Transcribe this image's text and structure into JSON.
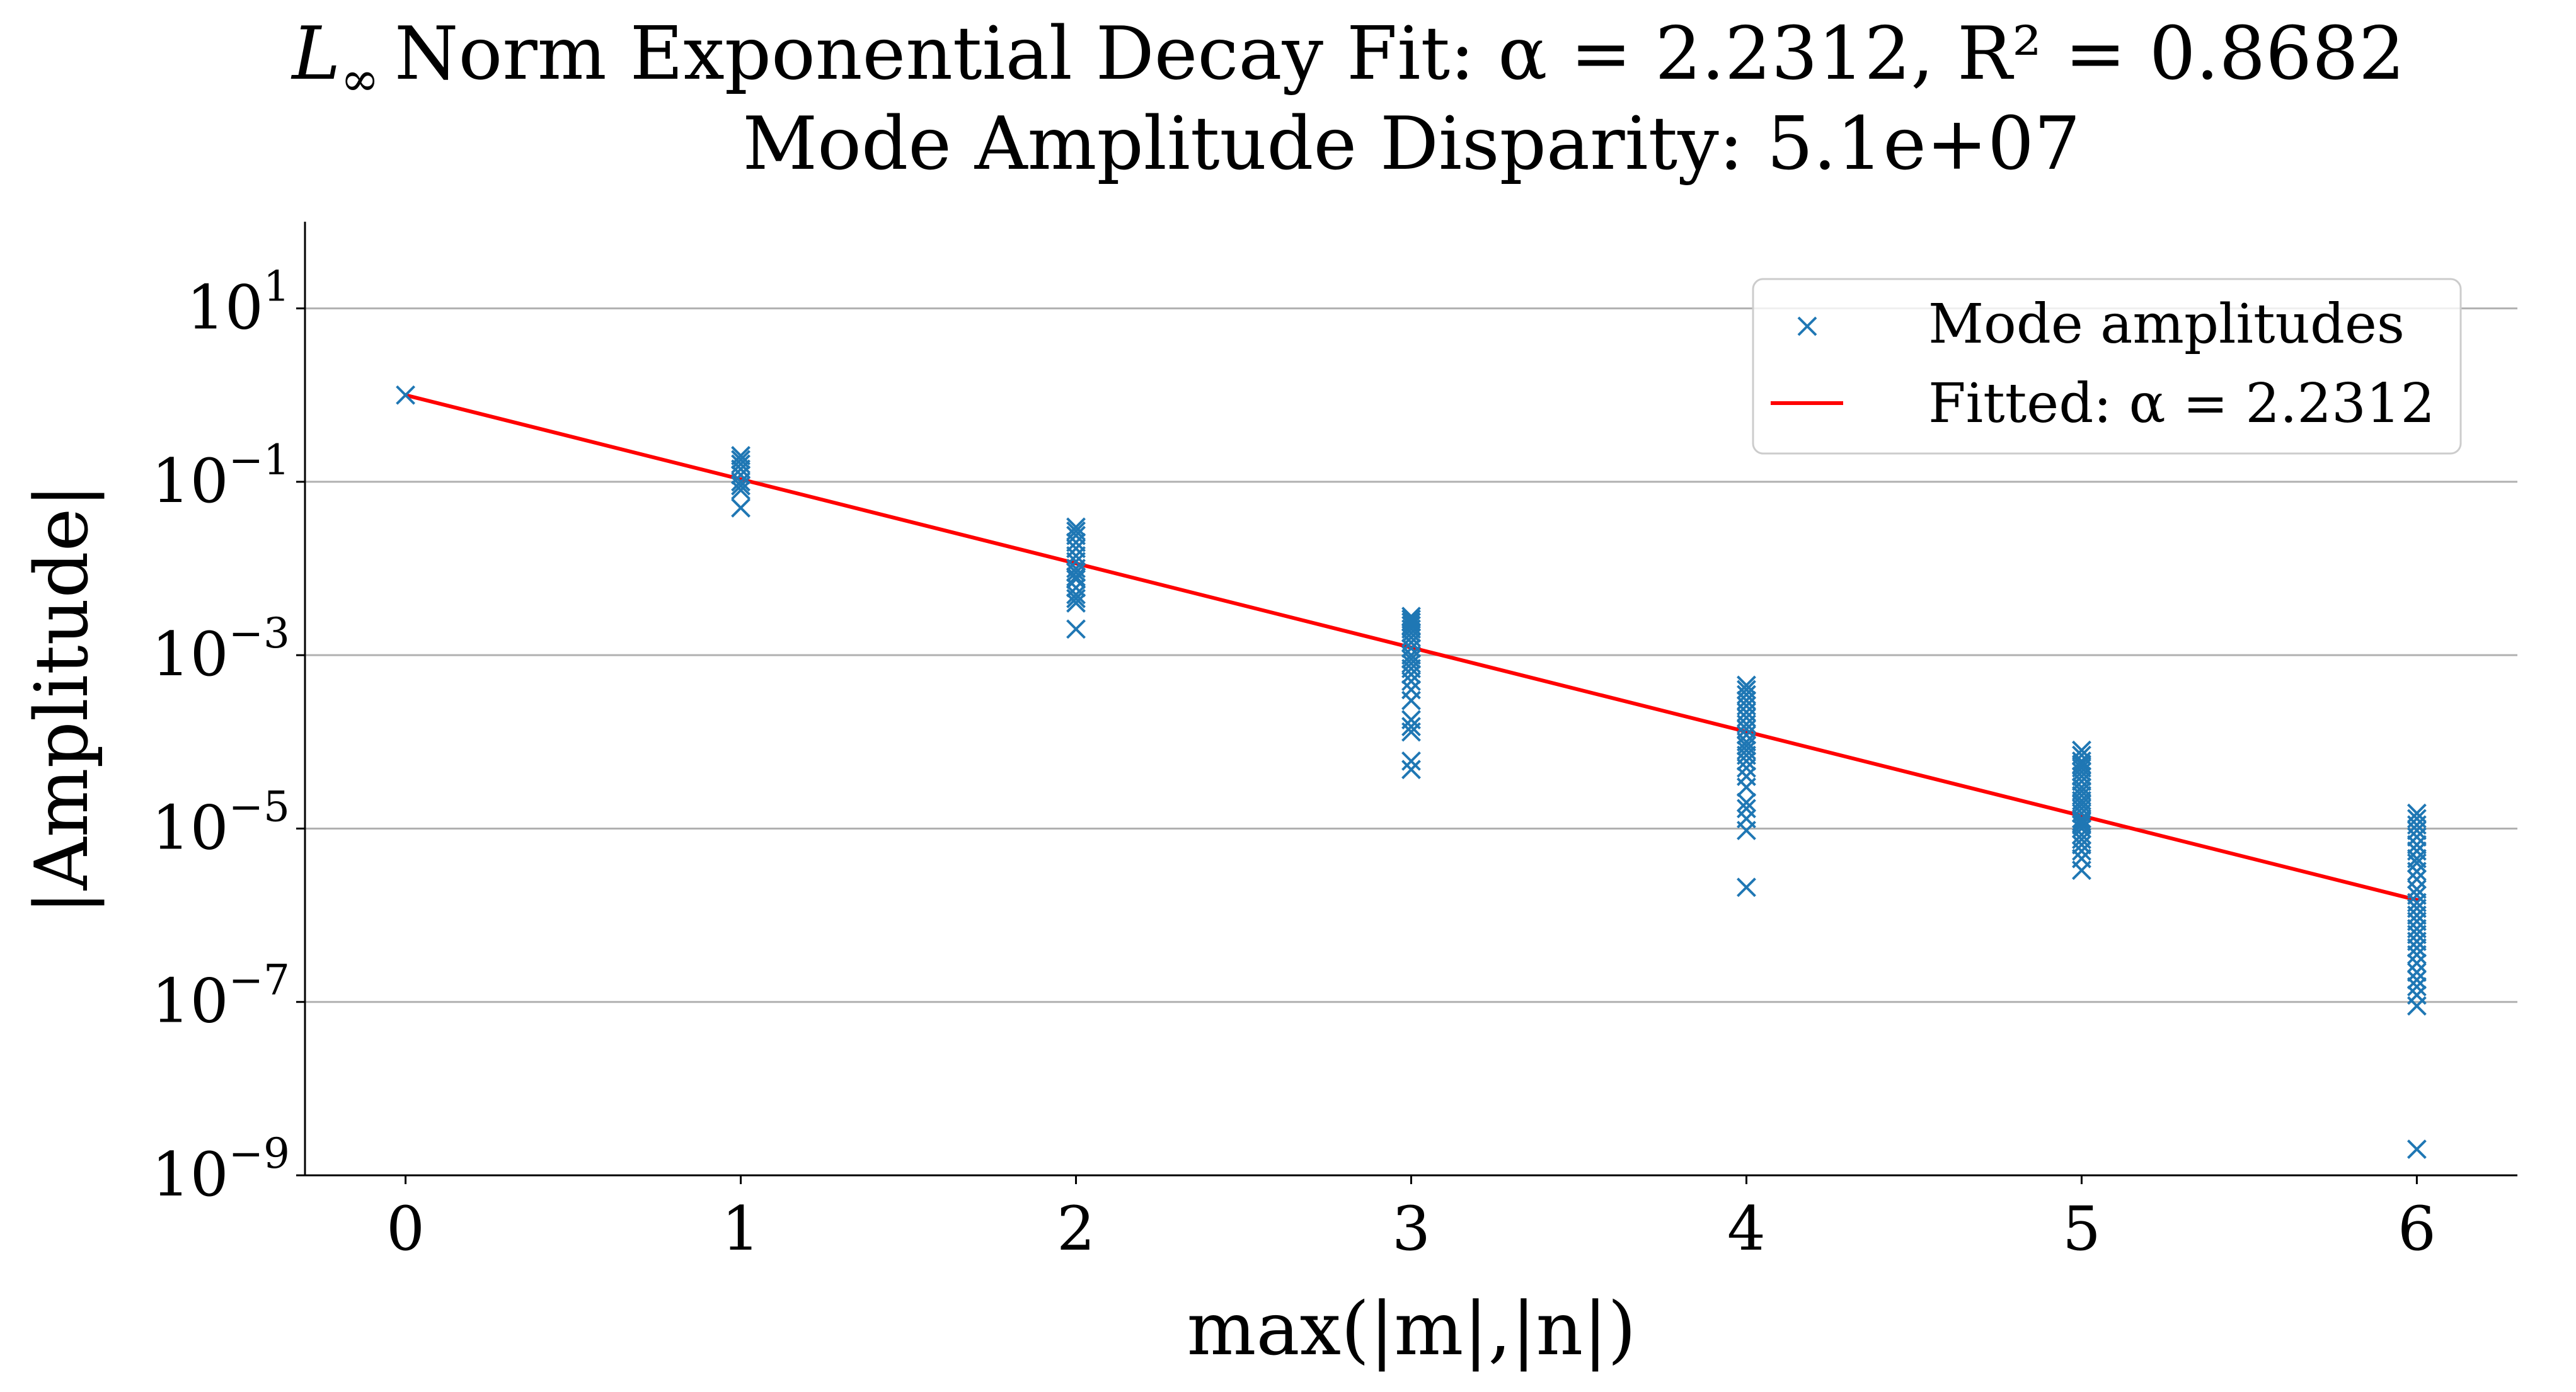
{
  "chart_data": {
    "type": "scatter",
    "title": {
      "norm_symbol": "L",
      "norm_subscript": "∞",
      "line1": "Norm Exponential Decay Fit: α = 2.2312, R² = 0.8682",
      "line2": "Mode Amplitude Disparity: 5.1e+07"
    },
    "xlabel": "max(|m|,|n|)",
    "ylabel": "|Amplitude|",
    "yscale": "log",
    "xlim": [
      -0.3,
      6.3
    ],
    "ylim": [
      1e-09,
      100
    ],
    "grid": "y-major",
    "xticks": [
      0,
      1,
      2,
      3,
      4,
      5,
      6
    ],
    "xtick_labels": [
      "0",
      "1",
      "2",
      "3",
      "4",
      "5",
      "6"
    ],
    "yticks": [
      {
        "value": 10,
        "base": "10",
        "exp": "1"
      },
      {
        "value": 0.1,
        "base": "10",
        "exp": "−1"
      },
      {
        "value": 0.001,
        "base": "10",
        "exp": "−3"
      },
      {
        "value": 1e-05,
        "base": "10",
        "exp": "−5"
      },
      {
        "value": 1e-07,
        "base": "10",
        "exp": "−7"
      },
      {
        "value": 1e-09,
        "base": "10",
        "exp": "−9"
      }
    ],
    "series": [
      {
        "name": "Mode amplitudes",
        "kind": "scatter",
        "marker": "x",
        "color": "#1f77b4",
        "points": [
          {
            "x": 0,
            "values": [
              1.0
            ]
          },
          {
            "x": 1,
            "values": [
              0.2,
              0.18,
              0.16,
              0.14,
              0.12,
              0.1,
              0.09,
              0.08,
              0.05
            ]
          },
          {
            "x": 2,
            "values": [
              0.03,
              0.027,
              0.024,
              0.02,
              0.017,
              0.014,
              0.012,
              0.01,
              0.009,
              0.008,
              0.0075,
              0.006,
              0.005,
              0.0045,
              0.004,
              0.002
            ]
          },
          {
            "x": 3,
            "values": [
              0.0028,
              0.0026,
              0.0024,
              0.0022,
              0.002,
              0.0018,
              0.0016,
              0.0014,
              0.0012,
              0.001,
              0.0009,
              0.0008,
              0.0007,
              0.0006,
              0.0005,
              0.0004,
              0.0003,
              0.00018,
              0.00015,
              0.00013,
              6e-05,
              4.8e-05
            ]
          },
          {
            "x": 4,
            "values": [
              0.00045,
              0.0004,
              0.00035,
              0.0003,
              0.00026,
              0.00022,
              0.00019,
              0.00016,
              0.00014,
              0.00012,
              0.0001,
              9e-05,
              8e-05,
              7e-05,
              6e-05,
              5e-05,
              4e-05,
              3e-05,
              2e-05,
              1.7e-05,
              1.3e-05,
              9.5e-06,
              2.1e-06
            ]
          },
          {
            "x": 5,
            "values": [
              8e-05,
              7e-05,
              6e-05,
              5.5e-05,
              5e-05,
              4.5e-05,
              4e-05,
              3.5e-05,
              3e-05,
              2.7e-05,
              2.4e-05,
              2.1e-05,
              1.9e-05,
              1.7e-05,
              1.5e-05,
              1.3e-05,
              1.2e-05,
              1.1e-05,
              1e-05,
              8.5e-06,
              7.5e-06,
              6.5e-06,
              5.5e-06,
              4.5e-06,
              3.3e-06
            ]
          },
          {
            "x": 6,
            "values": [
              1.5e-05,
              1.3e-05,
              1.1e-05,
              9.5e-06,
              8e-06,
              6.5e-06,
              5.5e-06,
              4.5e-06,
              4e-06,
              3.2e-06,
              2.6e-06,
              2e-06,
              1.7e-06,
              1.4e-06,
              1.2e-06,
              1e-06,
              8.5e-07,
              7e-07,
              6e-07,
              5e-07,
              4.2e-07,
              3.5e-07,
              2.8e-07,
              2.2e-07,
              1.8e-07,
              1.5e-07,
              1.2e-07,
              9e-08,
              2e-09
            ]
          }
        ]
      },
      {
        "name": "Fitted: α = 2.2312",
        "kind": "line",
        "color": "#ff0000",
        "x": [
          0,
          6
        ],
        "values": [
          1.0,
          1.5e-06
        ]
      }
    ],
    "legend": {
      "position": "top-right",
      "entries": [
        "Mode amplitudes",
        "Fitted: α = 2.2312"
      ]
    }
  }
}
